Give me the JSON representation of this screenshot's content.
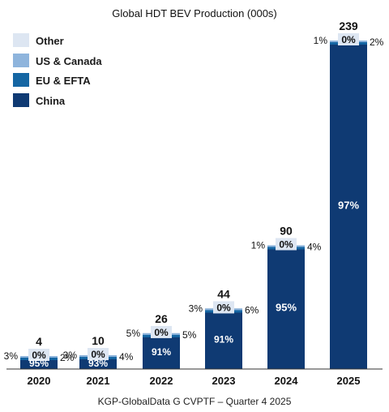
{
  "chart_data": {
    "type": "bar",
    "stacked": true,
    "title": "Global HDT BEV Production (000s)",
    "source": "KGP-GlobalData G CVPTF – Quarter 4 2025",
    "categories": [
      "2020",
      "2021",
      "2022",
      "2023",
      "2024",
      "2025"
    ],
    "totals": [
      4,
      10,
      26,
      44,
      90,
      239
    ],
    "series": [
      {
        "name": "China",
        "color": "#0f3a73",
        "share_pct": [
          95,
          93,
          91,
          91,
          95,
          97
        ],
        "labels": [
          "95%",
          "93%",
          "91%",
          "91%",
          "95%",
          "97%"
        ]
      },
      {
        "name": "EU & EFTA",
        "color": "#1566a3",
        "share_pct": [
          2,
          4,
          5,
          6,
          4,
          2
        ],
        "labels": [
          "2%",
          "4%",
          "5%",
          "6%",
          "4%",
          "2%"
        ]
      },
      {
        "name": "US & Canada",
        "color": "#8eb4dc",
        "share_pct": [
          3,
          3,
          5,
          3,
          1,
          1
        ],
        "labels": [
          "3%",
          "3%",
          "5%",
          "3%",
          "1%",
          "1%"
        ]
      },
      {
        "name": "Other",
        "color": "#dde6f2",
        "share_pct": [
          0,
          0,
          0,
          0,
          0,
          0
        ],
        "labels": [
          "0%",
          "0%",
          "0%",
          "0%",
          "0%",
          "0%"
        ]
      }
    ],
    "legend": [
      "Other",
      "US & Canada",
      "EU & EFTA",
      "China"
    ],
    "legend_position": "top-left",
    "ylim": [
      0,
      260
    ],
    "grid": false
  }
}
